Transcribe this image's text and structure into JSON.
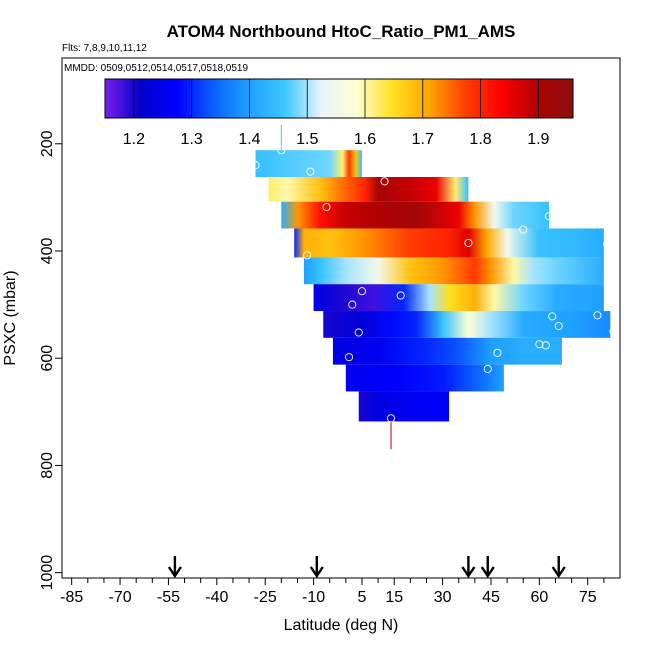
{
  "chart_data": {
    "type": "heatmap",
    "title": "ATOM4 Northbound HtoC_Ratio_PM1_AMS",
    "flights_label": "Flts: 7,8,9,10,11,12",
    "dates_label": "MMDD: 0509,0512,0514,0517,0518,0519",
    "xlabel": "Latitude (deg N)",
    "ylabel": "PSXC (mbar)",
    "xlim": [
      -88,
      85
    ],
    "ylim": [
      1010,
      40
    ],
    "x_ticks": [
      -85,
      -70,
      -55,
      -40,
      -25,
      -10,
      5,
      15,
      30,
      45,
      60,
      75
    ],
    "x_tick_labels": [
      "-85",
      "-70",
      "-55",
      "-40",
      "-25",
      "-10",
      "5",
      "15",
      "30",
      "45",
      "60",
      "75"
    ],
    "y_ticks": [
      200,
      400,
      600,
      800,
      1000
    ],
    "y_tick_labels": [
      "200",
      "400",
      "600",
      "800",
      "1000"
    ],
    "colorbar": {
      "min": 1.15,
      "max": 1.96,
      "ticks": [
        1.2,
        1.3,
        1.4,
        1.5,
        1.6,
        1.7,
        1.8,
        1.9
      ],
      "tick_labels": [
        "1.2",
        "1.3",
        "1.4",
        "1.5",
        "1.6",
        "1.7",
        "1.8",
        "1.9"
      ],
      "colors": [
        "#7a1ef0",
        "#0000c8",
        "#0000ff",
        "#0a60ff",
        "#1ea0ff",
        "#3cc8ff",
        "#e8f4ff",
        "#ffffd0",
        "#ffe020",
        "#ffa500",
        "#ff4000",
        "#ff0000",
        "#b00000",
        "#8b1010"
      ]
    },
    "arrows_latitude": [
      -53,
      -9,
      38,
      44,
      66
    ],
    "bands": [
      {
        "p_top": 212,
        "p_bot": 262,
        "lat_start": -28,
        "lat_end": 5,
        "stops": [
          [
            -28,
            1.45
          ],
          [
            -5,
            1.48
          ],
          [
            -1,
            1.62
          ],
          [
            1,
            1.78
          ],
          [
            3,
            1.68
          ],
          [
            5,
            1.45
          ]
        ]
      },
      {
        "p_top": 262,
        "p_bot": 308,
        "lat_start": -24,
        "lat_end": 38,
        "stops": [
          [
            -24,
            1.62
          ],
          [
            -18,
            1.6
          ],
          [
            -8,
            1.68
          ],
          [
            0,
            1.75
          ],
          [
            6,
            1.8
          ],
          [
            10,
            1.92
          ],
          [
            20,
            1.88
          ],
          [
            28,
            1.85
          ],
          [
            34,
            1.62
          ],
          [
            38,
            1.45
          ]
        ]
      },
      {
        "p_top": 308,
        "p_bot": 358,
        "lat_start": -20,
        "lat_end": 63,
        "stops": [
          [
            -20,
            1.42
          ],
          [
            -15,
            1.72
          ],
          [
            -8,
            1.82
          ],
          [
            0,
            1.88
          ],
          [
            10,
            1.9
          ],
          [
            22,
            1.92
          ],
          [
            35,
            1.85
          ],
          [
            40,
            1.72
          ],
          [
            46,
            1.55
          ],
          [
            52,
            1.48
          ],
          [
            63,
            1.45
          ]
        ]
      },
      {
        "p_top": 358,
        "p_bot": 412,
        "lat_start": -16,
        "lat_end": 80,
        "stops": [
          [
            -16,
            1.3
          ],
          [
            -13,
            1.7
          ],
          [
            -5,
            1.68
          ],
          [
            5,
            1.72
          ],
          [
            20,
            1.78
          ],
          [
            32,
            1.8
          ],
          [
            38,
            1.86
          ],
          [
            44,
            1.7
          ],
          [
            50,
            1.55
          ],
          [
            60,
            1.45
          ],
          [
            70,
            1.44
          ],
          [
            80,
            1.42
          ]
        ]
      },
      {
        "p_top": 412,
        "p_bot": 462,
        "lat_start": -13,
        "lat_end": 80,
        "stops": [
          [
            -13,
            1.4
          ],
          [
            -8,
            1.45
          ],
          [
            0,
            1.5
          ],
          [
            10,
            1.55
          ],
          [
            20,
            1.68
          ],
          [
            30,
            1.72
          ],
          [
            40,
            1.78
          ],
          [
            45,
            1.72
          ],
          [
            52,
            1.6
          ],
          [
            58,
            1.5
          ],
          [
            65,
            1.48
          ],
          [
            80,
            1.42
          ]
        ]
      },
      {
        "p_top": 462,
        "p_bot": 512,
        "lat_start": -10,
        "lat_end": 80,
        "stops": [
          [
            -10,
            1.25
          ],
          [
            -2,
            1.2
          ],
          [
            8,
            1.18
          ],
          [
            18,
            1.3
          ],
          [
            26,
            1.5
          ],
          [
            32,
            1.65
          ],
          [
            40,
            1.7
          ],
          [
            46,
            1.6
          ],
          [
            55,
            1.48
          ],
          [
            65,
            1.42
          ],
          [
            80,
            1.4
          ]
        ]
      },
      {
        "p_top": 512,
        "p_bot": 562,
        "lat_start": -7,
        "lat_end": 82,
        "stops": [
          [
            -7,
            1.2
          ],
          [
            5,
            1.23
          ],
          [
            15,
            1.28
          ],
          [
            22,
            1.3
          ],
          [
            30,
            1.45
          ],
          [
            38,
            1.58
          ],
          [
            45,
            1.5
          ],
          [
            55,
            1.42
          ],
          [
            70,
            1.4
          ],
          [
            82,
            1.38
          ]
        ]
      },
      {
        "p_top": 562,
        "p_bot": 612,
        "lat_start": -4,
        "lat_end": 67,
        "stops": [
          [
            -4,
            1.24
          ],
          [
            10,
            1.26
          ],
          [
            25,
            1.3
          ],
          [
            35,
            1.33
          ],
          [
            45,
            1.4
          ],
          [
            55,
            1.42
          ],
          [
            67,
            1.42
          ]
        ]
      },
      {
        "p_top": 612,
        "p_bot": 662,
        "lat_start": 0,
        "lat_end": 49,
        "stops": [
          [
            0,
            1.26
          ],
          [
            15,
            1.27
          ],
          [
            30,
            1.29
          ],
          [
            42,
            1.35
          ],
          [
            49,
            1.4
          ]
        ]
      },
      {
        "p_top": 662,
        "p_bot": 718,
        "lat_start": 4,
        "lat_end": 32,
        "stops": [
          [
            4,
            1.2
          ],
          [
            10,
            1.24
          ],
          [
            20,
            1.26
          ],
          [
            32,
            1.27
          ]
        ]
      }
    ],
    "profiles": [
      {
        "lat": -20,
        "p_top": 165,
        "p_bot": 212,
        "color": "#3cc8ff"
      },
      {
        "lat": 14,
        "p_top": 718,
        "p_bot": 770,
        "color": "#b00000"
      }
    ],
    "circles": [
      [
        -28,
        240
      ],
      [
        -20,
        212
      ],
      [
        -11,
        252
      ],
      [
        -6,
        318
      ],
      [
        12,
        270
      ],
      [
        38,
        385
      ],
      [
        55,
        360
      ],
      [
        -12,
        408
      ],
      [
        5,
        475
      ],
      [
        17,
        483
      ],
      [
        2,
        500
      ],
      [
        81,
        388
      ],
      [
        78,
        520
      ],
      [
        66,
        540
      ],
      [
        64,
        522
      ],
      [
        4,
        552
      ],
      [
        60,
        574
      ],
      [
        62,
        576
      ],
      [
        47,
        590
      ],
      [
        83,
        550
      ],
      [
        1,
        598
      ],
      [
        44,
        620
      ],
      [
        14,
        712
      ],
      [
        63,
        335
      ]
    ]
  }
}
